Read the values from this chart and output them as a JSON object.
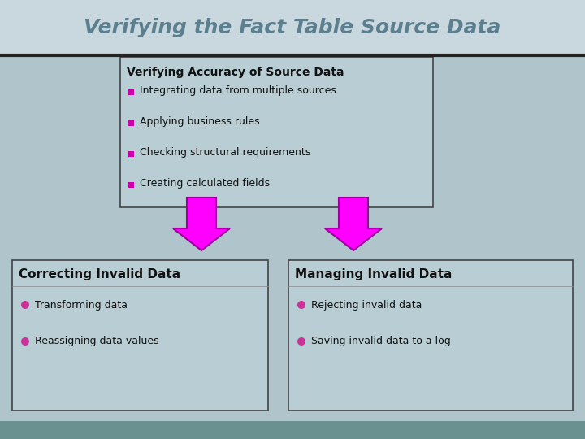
{
  "title": "Verifying the Fact Table Source Data",
  "title_color": "#5c7f8f",
  "title_fontsize": 18,
  "bg_color": "#b0c4cc",
  "title_bg_color": "#c8d8de",
  "title_bar_color": "#222222",
  "top_box": {
    "title": "Verifying Accuracy of Source Data",
    "items": [
      "Integrating data from multiple sources",
      "Applying business rules",
      "Checking structural requirements",
      "Creating calculated fields"
    ],
    "box_facecolor": "#b8cdd4",
    "border_color": "#444444",
    "title_fontsize": 10,
    "item_fontsize": 9,
    "bullet_color": "#cc00aa"
  },
  "bottom_left_box": {
    "title": "Correcting Invalid Data",
    "items": [
      "Transforming data",
      "Reassigning data values"
    ],
    "box_facecolor": "#b8cdd4",
    "border_color": "#444444",
    "title_fontsize": 11,
    "item_fontsize": 9,
    "bullet_color": "#cc3399"
  },
  "bottom_right_box": {
    "title": "Managing Invalid Data",
    "items": [
      "Rejecting invalid data",
      "Saving invalid data to a log"
    ],
    "box_facecolor": "#b8cdd4",
    "border_color": "#444444",
    "title_fontsize": 11,
    "item_fontsize": 9,
    "bullet_color": "#cc3399"
  },
  "arrow_color": "#ff00ff",
  "arrow_edge_color": "#990099",
  "footer_color": "#6a9090"
}
